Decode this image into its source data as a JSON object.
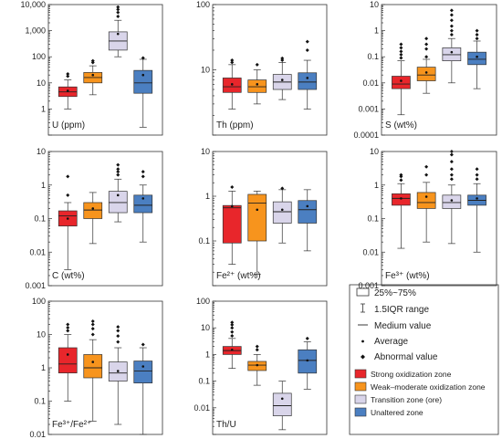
{
  "chart_data": [
    {
      "type": "box",
      "label": "U (ppm)",
      "yscale": "log",
      "ylim": [
        0.1,
        10000
      ],
      "yticks": [
        1,
        10,
        100,
        1000,
        10000
      ],
      "ytick_labels": [
        "1",
        "10",
        "100",
        "1,000",
        "10,000"
      ],
      "series": [
        {
          "min": 1,
          "q1": 3,
          "median": 4.5,
          "q3": 7,
          "max": 13,
          "mean": 5,
          "outliers": [
            18,
            22
          ]
        },
        {
          "min": 3.5,
          "q1": 10,
          "median": 16,
          "q3": 25,
          "max": 45,
          "mean": 20,
          "outliers": [
            60,
            70
          ]
        },
        {
          "min": 100,
          "q1": 180,
          "median": 400,
          "q3": 900,
          "max": 2500,
          "mean": 750,
          "outliers": [
            3500,
            5000,
            6500,
            8000
          ]
        },
        {
          "min": 0.2,
          "q1": 4,
          "median": 10,
          "q3": 30,
          "max": 80,
          "mean": 20,
          "outliers": [
            90
          ]
        }
      ]
    },
    {
      "type": "box",
      "label": "Th (ppm)",
      "yscale": "log",
      "ylim": [
        1,
        100
      ],
      "yticks": [
        10,
        100
      ],
      "ytick_labels": [
        "10",
        "100"
      ],
      "series": [
        {
          "min": 2.5,
          "q1": 4.5,
          "median": 5.5,
          "q3": 7.5,
          "max": 12,
          "mean": 6,
          "outliers": [
            13,
            14
          ]
        },
        {
          "min": 3,
          "q1": 4.5,
          "median": 5.5,
          "q3": 7,
          "max": 10,
          "mean": 6,
          "outliers": [
            12
          ]
        },
        {
          "min": 3.5,
          "q1": 5,
          "median": 6.5,
          "q3": 8.5,
          "max": 13,
          "mean": 7,
          "outliers": [
            14,
            15
          ]
        },
        {
          "min": 2.5,
          "q1": 5,
          "median": 6.5,
          "q3": 9,
          "max": 14,
          "mean": 7.5,
          "outliers": [
            20,
            27
          ]
        }
      ]
    },
    {
      "type": "box",
      "label": "S (wt%)",
      "yscale": "log",
      "ylim": [
        0.0001,
        10
      ],
      "yticks": [
        0.0001,
        0.001,
        0.01,
        0.1,
        1,
        10
      ],
      "ytick_labels": [
        "0.0001",
        "0.001",
        "0.01",
        "0.1",
        "1",
        "10"
      ],
      "series": [
        {
          "min": 0.0006,
          "q1": 0.006,
          "median": 0.009,
          "q3": 0.018,
          "max": 0.07,
          "mean": 0.012,
          "outliers": [
            0.09,
            0.12,
            0.16,
            0.22,
            0.3
          ]
        },
        {
          "min": 0.004,
          "q1": 0.012,
          "median": 0.02,
          "q3": 0.04,
          "max": 0.08,
          "mean": 0.025,
          "outliers": [
            0.1,
            0.2,
            0.3,
            0.5
          ]
        },
        {
          "min": 0.01,
          "q1": 0.07,
          "median": 0.12,
          "q3": 0.22,
          "max": 0.5,
          "mean": 0.15,
          "outliers": [
            0.7,
            1,
            1.5,
            2.5,
            4,
            6
          ]
        },
        {
          "min": 0.006,
          "q1": 0.05,
          "median": 0.08,
          "q3": 0.15,
          "max": 0.4,
          "mean": 0.1,
          "outliers": [
            0.5,
            0.7,
            1
          ]
        }
      ]
    },
    {
      "type": "box",
      "label": "C (wt%)",
      "yscale": "log",
      "ylim": [
        0.001,
        10
      ],
      "yticks": [
        0.001,
        0.01,
        0.1,
        1,
        10
      ],
      "ytick_labels": [
        "0.001",
        "0.01",
        "0.1",
        "1",
        "10"
      ],
      "series": [
        {
          "min": 0.003,
          "q1": 0.06,
          "median": 0.12,
          "q3": 0.17,
          "max": 0.3,
          "mean": 0.1,
          "outliers": [
            0.5,
            1.8
          ]
        },
        {
          "min": 0.018,
          "q1": 0.1,
          "median": 0.18,
          "q3": 0.3,
          "max": 0.6,
          "mean": 0.2,
          "outliers": []
        },
        {
          "min": 0.08,
          "q1": 0.15,
          "median": 0.3,
          "q3": 0.65,
          "max": 1.5,
          "mean": 0.5,
          "outliers": [
            2,
            2.5,
            3,
            4
          ]
        },
        {
          "min": 0.02,
          "q1": 0.15,
          "median": 0.25,
          "q3": 0.5,
          "max": 1,
          "mean": 0.4,
          "outliers": [
            1.8,
            2.5
          ]
        }
      ]
    },
    {
      "type": "box",
      "label": "Fe²⁺ (wt%)",
      "yscale": "log",
      "ylim": [
        0.01,
        10
      ],
      "yticks": [
        0.1,
        1,
        10
      ],
      "ytick_labels": [
        "0.1",
        "1",
        "10"
      ],
      "series": [
        {
          "min": 0.03,
          "q1": 0.09,
          "median": 0.55,
          "q3": 0.62,
          "max": 1.3,
          "mean": 0.6,
          "outliers": [
            1.6
          ]
        },
        {
          "min": 0.018,
          "q1": 0.1,
          "median": 0.7,
          "q3": 1.1,
          "max": 1.3,
          "mean": 0.5,
          "outliers": []
        },
        {
          "min": 0.09,
          "q1": 0.25,
          "median": 0.45,
          "q3": 0.75,
          "max": 1.4,
          "mean": 0.5,
          "outliers": [
            1.5
          ]
        },
        {
          "min": 0.06,
          "q1": 0.25,
          "median": 0.5,
          "q3": 0.8,
          "max": 1.4,
          "mean": 0.6,
          "outliers": []
        }
      ]
    },
    {
      "type": "box",
      "label": "Fe³⁺ (wt%)",
      "yscale": "log",
      "ylim": [
        0.001,
        10
      ],
      "yticks": [
        0.001,
        0.01,
        0.1,
        1,
        10
      ],
      "ytick_labels": [
        "0.001",
        "0.01",
        "0.1",
        "1",
        "10"
      ],
      "series": [
        {
          "min": 0.013,
          "q1": 0.25,
          "median": 0.4,
          "q3": 0.55,
          "max": 1.1,
          "mean": 0.4,
          "outliers": [
            1.4,
            1.8,
            2
          ]
        },
        {
          "min": 0.02,
          "q1": 0.2,
          "median": 0.3,
          "q3": 0.6,
          "max": 1.2,
          "mean": 0.45,
          "outliers": [
            2,
            3.5
          ]
        },
        {
          "min": 0.018,
          "q1": 0.2,
          "median": 0.3,
          "q3": 0.5,
          "max": 1,
          "mean": 0.35,
          "outliers": [
            1.5,
            2,
            3,
            5,
            8,
            12
          ]
        },
        {
          "min": 0.01,
          "q1": 0.25,
          "median": 0.35,
          "q3": 0.5,
          "max": 1.1,
          "mean": 0.4,
          "outliers": [
            1.5,
            2,
            3
          ]
        }
      ]
    },
    {
      "type": "box",
      "label": "Fe³⁺/Fe²⁺",
      "yscale": "log",
      "ylim": [
        0.01,
        100
      ],
      "yticks": [
        0.01,
        0.1,
        1,
        10,
        100
      ],
      "ytick_labels": [
        "0.01",
        "0.1",
        "1",
        "10",
        "100"
      ],
      "series": [
        {
          "min": 0.1,
          "q1": 0.7,
          "median": 1.3,
          "q3": 4,
          "max": 10,
          "mean": 2.5,
          "outliers": [
            13,
            16,
            20
          ]
        },
        {
          "min": 0.025,
          "q1": 0.5,
          "median": 1,
          "q3": 2.5,
          "max": 7,
          "mean": 1.5,
          "outliers": [
            10,
            15,
            20,
            25
          ]
        },
        {
          "min": 0.02,
          "q1": 0.4,
          "median": 0.7,
          "q3": 1.5,
          "max": 4,
          "mean": 0.8,
          "outliers": [
            6,
            9,
            13,
            17
          ]
        },
        {
          "min": 0.01,
          "q1": 0.35,
          "median": 0.8,
          "q3": 1.6,
          "max": 4,
          "mean": 1.1,
          "outliers": [
            5
          ]
        }
      ]
    },
    {
      "type": "box",
      "label": "Th/U",
      "yscale": "log",
      "ylim": [
        0.001,
        100
      ],
      "yticks": [
        0.01,
        0.1,
        1,
        10,
        100
      ],
      "ytick_labels": [
        "0.01",
        "0.1",
        "1",
        "10",
        "100"
      ],
      "series": [
        {
          "min": 0.3,
          "q1": 1,
          "median": 1.4,
          "q3": 2,
          "max": 4,
          "mean": 1.5,
          "outliers": [
            5,
            7,
            10,
            13,
            16
          ]
        },
        {
          "min": 0.07,
          "q1": 0.25,
          "median": 0.4,
          "q3": 0.55,
          "max": 1,
          "mean": 0.4,
          "outliers": [
            1.5,
            2
          ]
        },
        {
          "min": 0.0015,
          "q1": 0.005,
          "median": 0.012,
          "q3": 0.035,
          "max": 0.1,
          "mean": 0.022,
          "outliers": []
        },
        {
          "min": 0.05,
          "q1": 0.2,
          "median": 0.6,
          "q3": 1.5,
          "max": 3,
          "mean": 0.6,
          "outliers": [
            4
          ]
        }
      ]
    }
  ],
  "legend": {
    "items": [
      {
        "icon": "box-icon",
        "label": "25%~75%"
      },
      {
        "icon": "whisker-range-icon",
        "label": "1.5IQR range"
      },
      {
        "icon": "median-line-icon",
        "label": "Medium value"
      },
      {
        "icon": "average-dot-icon",
        "label": "Average"
      },
      {
        "icon": "outlier-diamond-icon",
        "label": "Abnormal value"
      }
    ],
    "zones": [
      {
        "label": "Strong oxidization zone",
        "color": "#e8262b"
      },
      {
        "label": "Weak–moderate oxidization zone",
        "color": "#f7941d"
      },
      {
        "label": "Transition zone (ore)",
        "color": "#d9d5ea"
      },
      {
        "label": "Unaltered zone",
        "color": "#4b7fc1"
      }
    ]
  }
}
